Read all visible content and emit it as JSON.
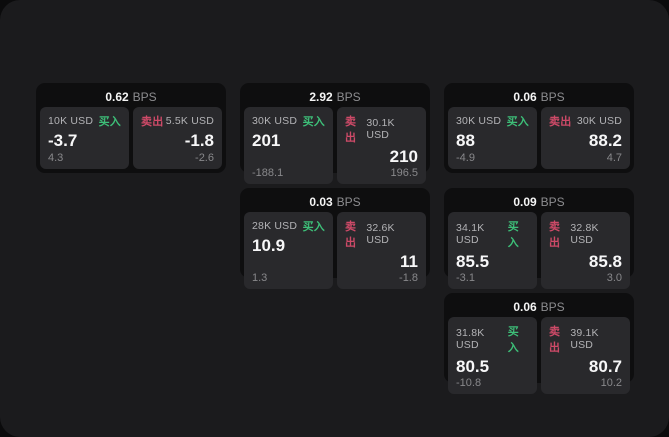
{
  "page": {
    "background": "#0b0b0c",
    "surface_background": "#1b1b1d",
    "card_background": "#0e0e0f",
    "panel_background": "#29292c"
  },
  "labels": {
    "buy": "买入",
    "sell": "卖出",
    "bps_unit": "BPS"
  },
  "colors": {
    "buy": "#3dbe78",
    "sell": "#ce4a68"
  },
  "cards": [
    {
      "row": 1,
      "col": 1,
      "bps": "0.62",
      "buy": {
        "amount": "10K USD",
        "price": "-3.7",
        "sub": "4.3"
      },
      "sell": {
        "amount": "5.5K USD",
        "price": "-1.8",
        "sub": "-2.6"
      }
    },
    {
      "row": 1,
      "col": 2,
      "bps": "2.92",
      "buy": {
        "amount": "30K USD",
        "price": "201",
        "sub": "-188.1"
      },
      "sell": {
        "amount": "30.1K USD",
        "price": "210",
        "sub": "196.5"
      }
    },
    {
      "row": 1,
      "col": 3,
      "bps": "0.06",
      "buy": {
        "amount": "30K USD",
        "price": "88",
        "sub": "-4.9"
      },
      "sell": {
        "amount": "30K USD",
        "price": "88.2",
        "sub": "4.7"
      }
    },
    {
      "row": 2,
      "col": 2,
      "bps": "0.03",
      "buy": {
        "amount": "28K USD",
        "price": "10.9",
        "sub": "1.3"
      },
      "sell": {
        "amount": "32.6K USD",
        "price": "11",
        "sub": "-1.8"
      }
    },
    {
      "row": 2,
      "col": 3,
      "bps": "0.09",
      "buy": {
        "amount": "34.1K USD",
        "price": "85.5",
        "sub": "-3.1"
      },
      "sell": {
        "amount": "32.8K USD",
        "price": "85.8",
        "sub": "3.0"
      }
    },
    {
      "row": 3,
      "col": 3,
      "bps": "0.06",
      "buy": {
        "amount": "31.8K USD",
        "price": "80.5",
        "sub": "-10.8"
      },
      "sell": {
        "amount": "39.1K USD",
        "price": "80.7",
        "sub": "10.2"
      }
    }
  ]
}
